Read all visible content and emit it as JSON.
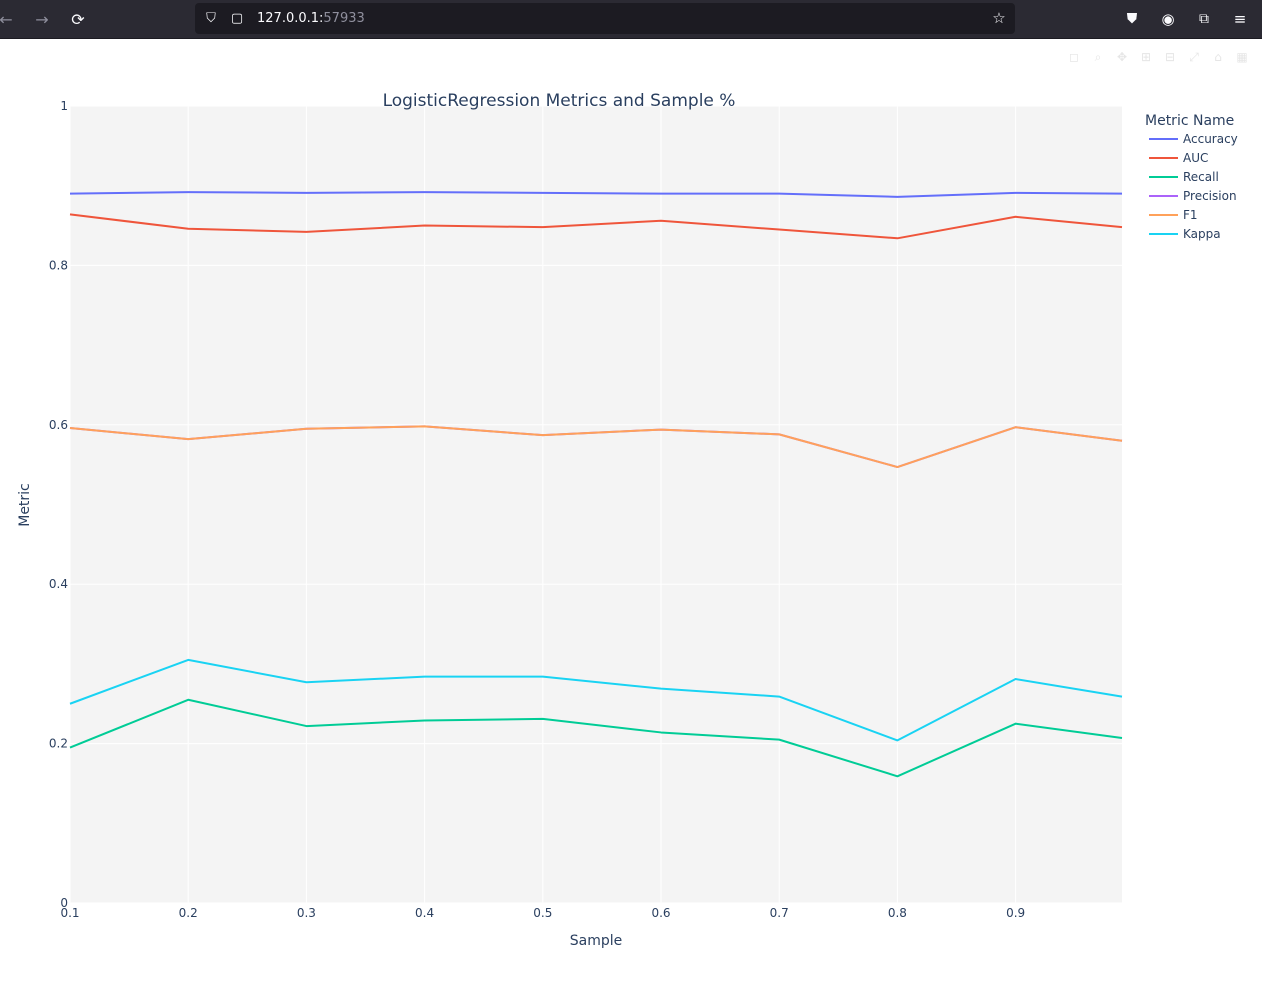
{
  "browser": {
    "url_host": "127.0.0.1:",
    "url_port": "57933"
  },
  "chart_data": {
    "type": "line",
    "title": "LogisticRegression Metrics and Sample %",
    "xlabel": "Sample",
    "ylabel": "Metric",
    "xlim": [
      0.1,
      0.99
    ],
    "ylim": [
      0,
      1
    ],
    "x_ticks": [
      "0.1",
      "0.2",
      "0.3",
      "0.4",
      "0.5",
      "0.6",
      "0.7",
      "0.8",
      "0.9"
    ],
    "y_ticks": [
      "0",
      "0.2",
      "0.4",
      "0.6",
      "0.8",
      "1"
    ],
    "legend_title": "Metric Name",
    "legend_position": "top-right",
    "grid": true,
    "x": [
      0.1,
      0.2,
      0.3,
      0.4,
      0.5,
      0.6,
      0.7,
      0.8,
      0.9,
      0.99
    ],
    "series": [
      {
        "name": "Accuracy",
        "color": "#636efa",
        "values": [
          0.89,
          0.892,
          0.891,
          0.892,
          0.891,
          0.89,
          0.89,
          0.886,
          0.891,
          0.89
        ]
      },
      {
        "name": "AUC",
        "color": "#ef553b",
        "values": [
          0.864,
          0.846,
          0.842,
          0.85,
          0.848,
          0.856,
          0.845,
          0.834,
          0.861,
          0.848
        ]
      },
      {
        "name": "Recall",
        "color": "#00cc96",
        "values": [
          0.195,
          0.255,
          0.222,
          0.229,
          0.231,
          0.214,
          0.205,
          0.159,
          0.225,
          0.207
        ]
      },
      {
        "name": "Precision",
        "color": "#ab63fa",
        "values": [
          0.596,
          0.582,
          0.595,
          0.598,
          0.587,
          0.594,
          0.588,
          0.547,
          0.597,
          0.58
        ]
      },
      {
        "name": "F1",
        "color": "#ffa15a",
        "values": [
          0.596,
          0.582,
          0.595,
          0.598,
          0.587,
          0.594,
          0.588,
          0.547,
          0.597,
          0.58
        ]
      },
      {
        "name": "Kappa",
        "color": "#19d3f3",
        "values": [
          0.25,
          0.305,
          0.277,
          0.284,
          0.284,
          0.269,
          0.259,
          0.204,
          0.281,
          0.259
        ]
      }
    ]
  }
}
